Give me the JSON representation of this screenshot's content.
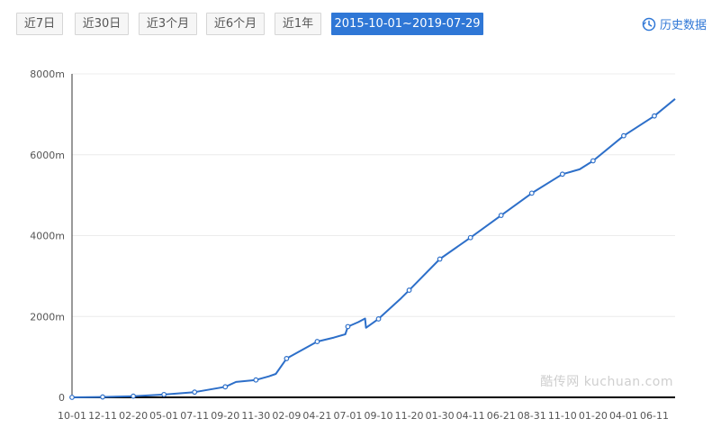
{
  "tabs": [
    "近7日",
    "近30日",
    "近3个月",
    "近6个月",
    "近1年",
    "2015-10-01~2019-07-29"
  ],
  "active_tab_index": 5,
  "history_link": {
    "label": "历史数据",
    "icon": "history-clock-icon"
  },
  "watermark": "酷传网 kuchuan.com",
  "colors": {
    "accent": "#2f77d6",
    "line": "#2d6fc9",
    "grid": "#ececec",
    "axis": "#000000"
  },
  "chart_data": {
    "type": "line",
    "title": "",
    "xlabel": "",
    "ylabel": "",
    "ylim": [
      0,
      8000
    ],
    "y_ticks": [
      0,
      2000,
      4000,
      6000,
      8000
    ],
    "y_tick_labels": [
      "0",
      "2000m",
      "4000m",
      "6000m",
      "8000m"
    ],
    "x_ticks": [
      "2015-10-01",
      "2015-12-11",
      "2016-02-20",
      "2016-05-01",
      "2016-07-11",
      "2016-09-20",
      "2016-11-30",
      "2017-02-09",
      "2017-04-21",
      "2017-07-01",
      "2017-09-10",
      "2017-11-20",
      "2018-01-30",
      "2018-04-11",
      "2018-06-21",
      "2018-08-31",
      "2018-11-10",
      "2019-01-20",
      "2019-04-01",
      "2019-06-11"
    ],
    "x_tick_labels": [
      "10-01",
      "12-11",
      "02-20",
      "05-01",
      "07-11",
      "09-20",
      "11-30",
      "02-09",
      "04-21",
      "07-01",
      "09-10",
      "11-20",
      "01-30",
      "04-11",
      "06-21",
      "08-31",
      "11-10",
      "01-20",
      "04-01",
      "06-11"
    ],
    "xlim": [
      "2015-10-01",
      "2019-07-29"
    ],
    "grid": true,
    "series": [
      {
        "x": [
          "2015-10-01",
          "2015-12-11",
          "2016-02-20",
          "2016-05-01",
          "2016-07-11",
          "2016-09-20",
          "2016-10-15",
          "2016-11-30",
          "2016-12-30",
          "2017-01-15",
          "2017-02-09",
          "2017-04-21",
          "2017-05-30",
          "2017-06-25",
          "2017-07-01",
          "2017-07-25",
          "2017-08-10",
          "2017-08-12",
          "2017-09-10",
          "2017-11-01",
          "2017-11-20",
          "2018-01-30",
          "2018-04-11",
          "2018-06-21",
          "2018-08-31",
          "2018-11-10",
          "2018-12-20",
          "2019-01-20",
          "2019-04-01",
          "2019-06-11",
          "2019-07-29"
        ],
        "y": [
          0,
          10,
          30,
          70,
          130,
          260,
          380,
          430,
          520,
          580,
          960,
          1380,
          1480,
          1560,
          1750,
          1860,
          1950,
          1720,
          1940,
          2450,
          2650,
          3420,
          3950,
          4500,
          5050,
          5520,
          5640,
          5850,
          6470,
          6960,
          7380
        ]
      }
    ],
    "markers_x": [
      "2015-10-01",
      "2015-12-11",
      "2016-02-20",
      "2016-05-01",
      "2016-07-11",
      "2016-09-20",
      "2016-11-30",
      "2017-02-09",
      "2017-04-21",
      "2017-07-01",
      "2017-09-10",
      "2017-11-20",
      "2018-01-30",
      "2018-04-11",
      "2018-06-21",
      "2018-08-31",
      "2018-11-10",
      "2019-01-20",
      "2019-04-01",
      "2019-06-11"
    ],
    "markers_y": [
      0,
      10,
      30,
      70,
      130,
      260,
      430,
      960,
      1380,
      1750,
      1940,
      2650,
      3420,
      3950,
      4500,
      5050,
      5520,
      5850,
      6470,
      6960
    ]
  }
}
